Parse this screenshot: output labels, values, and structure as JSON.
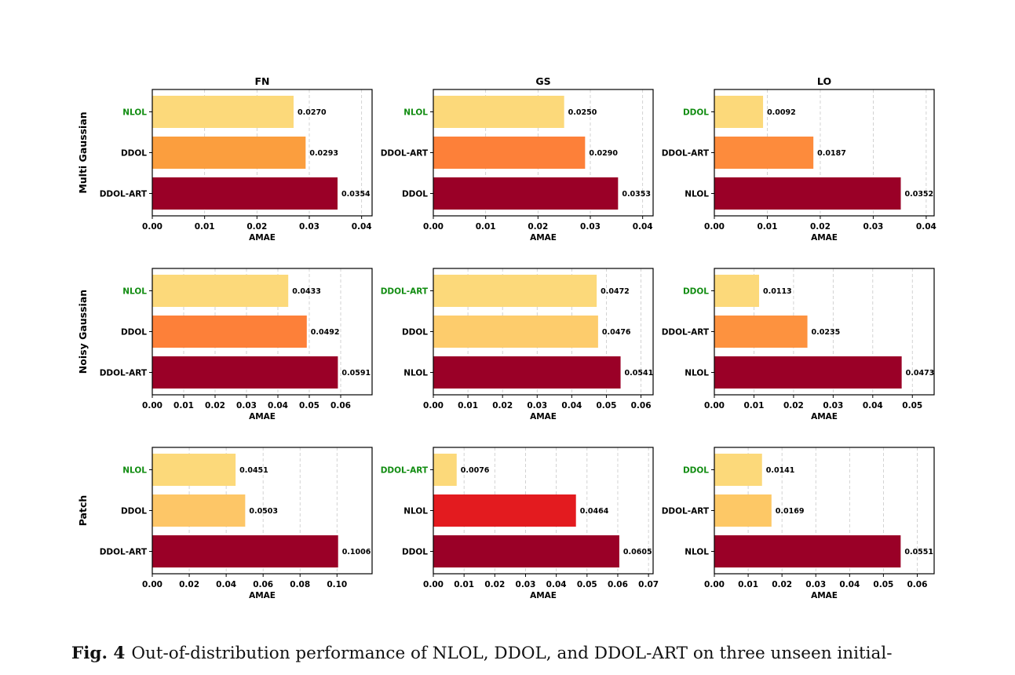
{
  "figure": {
    "row_labels": [
      "Multi Gaussian",
      "Noisy Gaussian",
      "Patch"
    ],
    "col_titles": [
      "FN",
      "GS",
      "LO"
    ],
    "xlabel": "AMAE",
    "highlight_color": "#118c11"
  },
  "chart_data": [
    {
      "type": "bar",
      "orientation": "horizontal",
      "row": "Multi Gaussian",
      "title": "FN",
      "xlabel": "AMAE",
      "categories": [
        "NLOL",
        "DDOL",
        "DDOL-ART"
      ],
      "values": [
        0.027,
        0.0293,
        0.0354
      ],
      "value_labels": [
        "0.0270",
        "0.0293",
        "0.0354"
      ],
      "colors": [
        "#fcd97a",
        "#fb9e3e",
        "#9a0027"
      ],
      "highlight": "NLOL",
      "xlim": [
        0,
        0.042
      ],
      "ticks": [
        0,
        0.01,
        0.02,
        0.03,
        0.04
      ],
      "tick_labels": [
        "0.00",
        "0.01",
        "0.02",
        "0.03",
        "0.04"
      ],
      "grid": true
    },
    {
      "type": "bar",
      "orientation": "horizontal",
      "row": "Multi Gaussian",
      "title": "GS",
      "xlabel": "AMAE",
      "categories": [
        "NLOL",
        "DDOL-ART",
        "DDOL"
      ],
      "values": [
        0.025,
        0.029,
        0.0353
      ],
      "value_labels": [
        "0.0250",
        "0.0290",
        "0.0353"
      ],
      "colors": [
        "#fcd97a",
        "#fd8039",
        "#9a0027"
      ],
      "highlight": "NLOL",
      "xlim": [
        0,
        0.042
      ],
      "ticks": [
        0,
        0.01,
        0.02,
        0.03,
        0.04
      ],
      "tick_labels": [
        "0.00",
        "0.01",
        "0.02",
        "0.03",
        "0.04"
      ],
      "grid": true
    },
    {
      "type": "bar",
      "orientation": "horizontal",
      "row": "Multi Gaussian",
      "title": "LO",
      "xlabel": "AMAE",
      "categories": [
        "DDOL",
        "DDOL-ART",
        "NLOL"
      ],
      "values": [
        0.0092,
        0.0187,
        0.0352
      ],
      "value_labels": [
        "0.0092",
        "0.0187",
        "0.0352"
      ],
      "colors": [
        "#fcd97a",
        "#fd8b3c",
        "#9a0027"
      ],
      "highlight": "DDOL",
      "xlim": [
        0,
        0.0415
      ],
      "ticks": [
        0,
        0.01,
        0.02,
        0.03,
        0.04
      ],
      "tick_labels": [
        "0.00",
        "0.01",
        "0.02",
        "0.03",
        "0.04"
      ],
      "grid": true
    },
    {
      "type": "bar",
      "orientation": "horizontal",
      "row": "Noisy Gaussian",
      "title": "FN",
      "xlabel": "AMAE",
      "categories": [
        "NLOL",
        "DDOL",
        "DDOL-ART"
      ],
      "values": [
        0.0433,
        0.0492,
        0.0591
      ],
      "value_labels": [
        "0.0433",
        "0.0492",
        "0.0591"
      ],
      "colors": [
        "#fcd97a",
        "#fd8039",
        "#9a0027"
      ],
      "highlight": "NLOL",
      "xlim": [
        0,
        0.07
      ],
      "ticks": [
        0,
        0.01,
        0.02,
        0.03,
        0.04,
        0.05,
        0.06
      ],
      "tick_labels": [
        "0.00",
        "0.01",
        "0.02",
        "0.03",
        "0.04",
        "0.05",
        "0.06"
      ],
      "grid": true
    },
    {
      "type": "bar",
      "orientation": "horizontal",
      "row": "Noisy Gaussian",
      "title": "GS",
      "xlabel": "AMAE",
      "categories": [
        "DDOL-ART",
        "DDOL",
        "NLOL"
      ],
      "values": [
        0.0472,
        0.0476,
        0.0541
      ],
      "value_labels": [
        "0.0472",
        "0.0476",
        "0.0541"
      ],
      "colors": [
        "#fcd97a",
        "#fdcc6c",
        "#9a0027"
      ],
      "highlight": "DDOL-ART",
      "xlim": [
        0,
        0.0635
      ],
      "ticks": [
        0,
        0.01,
        0.02,
        0.03,
        0.04,
        0.05,
        0.06
      ],
      "tick_labels": [
        "0.00",
        "0.01",
        "0.02",
        "0.03",
        "0.04",
        "0.05",
        "0.06"
      ],
      "grid": true
    },
    {
      "type": "bar",
      "orientation": "horizontal",
      "row": "Noisy Gaussian",
      "title": "LO",
      "xlabel": "AMAE",
      "categories": [
        "DDOL",
        "DDOL-ART",
        "NLOL"
      ],
      "values": [
        0.0113,
        0.0235,
        0.0473
      ],
      "value_labels": [
        "0.0113",
        "0.0235",
        "0.0473"
      ],
      "colors": [
        "#fcd97a",
        "#fd923f",
        "#9a0027"
      ],
      "highlight": "DDOL",
      "xlim": [
        0,
        0.0555
      ],
      "ticks": [
        0,
        0.01,
        0.02,
        0.03,
        0.04,
        0.05
      ],
      "tick_labels": [
        "0.00",
        "0.01",
        "0.02",
        "0.03",
        "0.04",
        "0.05"
      ],
      "grid": true
    },
    {
      "type": "bar",
      "orientation": "horizontal",
      "row": "Patch",
      "title": "FN",
      "xlabel": "AMAE",
      "categories": [
        "NLOL",
        "DDOL",
        "DDOL-ART"
      ],
      "values": [
        0.0451,
        0.0503,
        0.1006
      ],
      "value_labels": [
        "0.0451",
        "0.0503",
        "0.1006"
      ],
      "colors": [
        "#fcd97a",
        "#fdc667",
        "#9a0027"
      ],
      "highlight": "NLOL",
      "xlim": [
        0,
        0.119
      ],
      "ticks": [
        0,
        0.02,
        0.04,
        0.06,
        0.08,
        0.1
      ],
      "tick_labels": [
        "0.00",
        "0.02",
        "0.04",
        "0.06",
        "0.08",
        "0.10"
      ],
      "grid": true
    },
    {
      "type": "bar",
      "orientation": "horizontal",
      "row": "Patch",
      "title": "GS",
      "xlabel": "AMAE",
      "categories": [
        "DDOL-ART",
        "NLOL",
        "DDOL"
      ],
      "values": [
        0.0076,
        0.0464,
        0.0605
      ],
      "value_labels": [
        "0.0076",
        "0.0464",
        "0.0605"
      ],
      "colors": [
        "#fcd97a",
        "#e31b1f",
        "#9a0027"
      ],
      "highlight": "DDOL-ART",
      "xlim": [
        0,
        0.0715
      ],
      "ticks": [
        0,
        0.01,
        0.02,
        0.03,
        0.04,
        0.05,
        0.06,
        0.07
      ],
      "tick_labels": [
        "0.00",
        "0.01",
        "0.02",
        "0.03",
        "0.04",
        "0.05",
        "0.06",
        "0.07"
      ],
      "grid": true
    },
    {
      "type": "bar",
      "orientation": "horizontal",
      "row": "Patch",
      "title": "LO",
      "xlabel": "AMAE",
      "categories": [
        "DDOL",
        "DDOL-ART",
        "NLOL"
      ],
      "values": [
        0.0141,
        0.0169,
        0.0551
      ],
      "value_labels": [
        "0.0141",
        "0.0169",
        "0.0551"
      ],
      "colors": [
        "#fcd97a",
        "#fdc866",
        "#9a0027"
      ],
      "highlight": "DDOL",
      "xlim": [
        0,
        0.065
      ],
      "ticks": [
        0,
        0.01,
        0.02,
        0.03,
        0.04,
        0.05,
        0.06
      ],
      "tick_labels": [
        "0.00",
        "0.01",
        "0.02",
        "0.03",
        "0.04",
        "0.05",
        "0.06"
      ],
      "grid": true
    }
  ],
  "caption": {
    "label": "Fig. 4",
    "text": "Out-of-distribution performance of NLOL, DDOL, and DDOL-ART on three unseen initial-"
  }
}
